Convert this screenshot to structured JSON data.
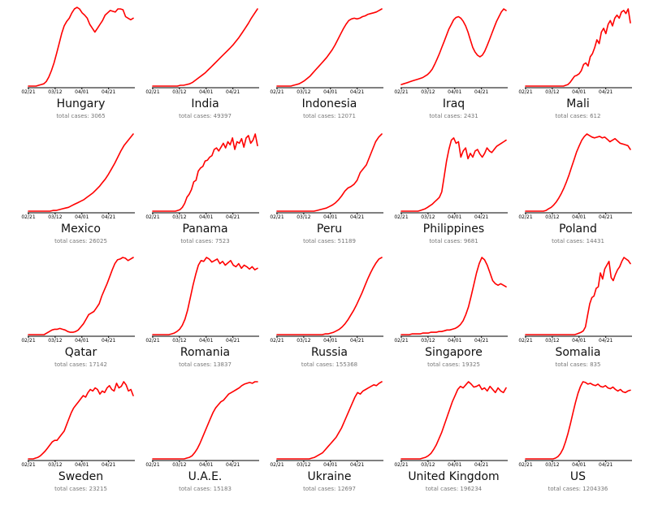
{
  "chart_data": [
    {
      "type": "line",
      "title": "Hungary",
      "subtitle": "total cases: 3065",
      "x_ticks": [
        "02/21",
        "03/12",
        "04/01",
        "04/21"
      ],
      "values": [
        0,
        0,
        0,
        0,
        1,
        2,
        3,
        6,
        12,
        20,
        30,
        42,
        55,
        68,
        78,
        84,
        88,
        95,
        100,
        102,
        100,
        95,
        92,
        88,
        80,
        75,
        70,
        75,
        80,
        85,
        92,
        95,
        98,
        97,
        96,
        100,
        100,
        99,
        90,
        88,
        86,
        88
      ]
    },
    {
      "type": "line",
      "title": "India",
      "subtitle": "total cases: 49397",
      "x_ticks": [
        "02/21",
        "03/12",
        "04/01",
        "04/21"
      ],
      "values": [
        0,
        0,
        0,
        0,
        0,
        0,
        0,
        0,
        0,
        1,
        1,
        2,
        3,
        5,
        8,
        11,
        14,
        17,
        21,
        25,
        29,
        33,
        37,
        41,
        45,
        49,
        53,
        58,
        63,
        69,
        75,
        81,
        88,
        94,
        100
      ]
    },
    {
      "type": "line",
      "title": "Indonesia",
      "subtitle": "total cases: 12071",
      "x_ticks": [
        "02/21",
        "03/12",
        "04/01",
        "04/21"
      ],
      "values": [
        0,
        0,
        0,
        0,
        0,
        0,
        1,
        2,
        3,
        5,
        7,
        10,
        13,
        17,
        21,
        25,
        29,
        33,
        37,
        42,
        47,
        53,
        60,
        67,
        74,
        80,
        85,
        87,
        88,
        87,
        88,
        90,
        91,
        93,
        94,
        95,
        96,
        98,
        100
      ]
    },
    {
      "type": "line",
      "title": "Iraq",
      "subtitle": "total cases: 2431",
      "x_ticks": [
        "02/21",
        "03/12",
        "04/01",
        "04/21"
      ],
      "values": [
        2,
        3,
        4,
        5,
        6,
        7,
        8,
        9,
        10,
        11,
        13,
        15,
        18,
        22,
        28,
        35,
        42,
        50,
        58,
        66,
        74,
        80,
        86,
        89,
        90,
        88,
        84,
        78,
        70,
        60,
        50,
        44,
        40,
        38,
        40,
        45,
        52,
        60,
        68,
        76,
        84,
        90,
        96,
        100,
        98
      ]
    },
    {
      "type": "line",
      "title": "Mali",
      "subtitle": "total cases: 612",
      "x_ticks": [
        "02/21",
        "03/12",
        "04/01",
        "04/21"
      ],
      "values": [
        0,
        0,
        0,
        0,
        0,
        0,
        0,
        0,
        0,
        0,
        0,
        0,
        0,
        0,
        0,
        0,
        0,
        0,
        1,
        2,
        5,
        9,
        13,
        14,
        16,
        20,
        28,
        30,
        26,
        38,
        42,
        50,
        60,
        55,
        70,
        75,
        68,
        80,
        85,
        78,
        88,
        92,
        88,
        96,
        98,
        94,
        100,
        82
      ]
    },
    {
      "type": "line",
      "title": "Mexico",
      "subtitle": "total cases: 26025",
      "x_ticks": [
        "02/21",
        "03/12",
        "04/01",
        "04/21"
      ],
      "values": [
        0,
        0,
        0,
        0,
        0,
        0,
        0,
        0,
        1,
        1,
        2,
        3,
        4,
        5,
        7,
        9,
        11,
        13,
        15,
        18,
        21,
        24,
        28,
        32,
        37,
        42,
        48,
        55,
        62,
        70,
        78,
        85,
        90,
        95,
        100
      ]
    },
    {
      "type": "line",
      "title": "Panama",
      "subtitle": "total cases: 7523",
      "x_ticks": [
        "02/21",
        "03/12",
        "04/01",
        "04/21"
      ],
      "values": [
        0,
        0,
        0,
        0,
        0,
        0,
        0,
        0,
        0,
        0,
        0,
        1,
        2,
        5,
        10,
        18,
        22,
        28,
        38,
        40,
        52,
        56,
        58,
        65,
        66,
        70,
        72,
        80,
        82,
        78,
        83,
        88,
        82,
        90,
        86,
        95,
        80,
        90,
        88,
        94,
        83,
        95,
        98,
        88,
        92,
        100,
        85
      ]
    },
    {
      "type": "line",
      "title": "Peru",
      "subtitle": "total cases: 51189",
      "x_ticks": [
        "02/21",
        "03/12",
        "04/01",
        "04/21"
      ],
      "values": [
        0,
        0,
        0,
        0,
        0,
        0,
        0,
        0,
        0,
        0,
        0,
        0,
        0,
        1,
        2,
        3,
        4,
        6,
        8,
        11,
        15,
        20,
        26,
        30,
        32,
        35,
        40,
        50,
        55,
        60,
        70,
        80,
        90,
        96,
        100
      ]
    },
    {
      "type": "line",
      "title": "Philippines",
      "subtitle": "total cases: 9681",
      "x_ticks": [
        "02/21",
        "03/12",
        "04/01",
        "04/21"
      ],
      "values": [
        0,
        0,
        0,
        0,
        0,
        0,
        0,
        0,
        1,
        2,
        3,
        5,
        7,
        9,
        12,
        15,
        18,
        25,
        45,
        65,
        80,
        92,
        95,
        88,
        90,
        70,
        78,
        82,
        68,
        75,
        70,
        78,
        80,
        74,
        70,
        75,
        82,
        78,
        76,
        80,
        84,
        86,
        88,
        90,
        92
      ]
    },
    {
      "type": "line",
      "title": "Poland",
      "subtitle": "total cases: 14431",
      "x_ticks": [
        "02/21",
        "03/12",
        "04/01",
        "04/21"
      ],
      "values": [
        0,
        0,
        0,
        0,
        0,
        0,
        0,
        0,
        1,
        3,
        5,
        8,
        12,
        17,
        23,
        30,
        38,
        47,
        57,
        67,
        77,
        85,
        92,
        97,
        100,
        98,
        96,
        95,
        96,
        97,
        95,
        96,
        93,
        90,
        92,
        94,
        91,
        88,
        87,
        86,
        85,
        80
      ]
    },
    {
      "type": "line",
      "title": "Qatar",
      "subtitle": "total cases: 17142",
      "x_ticks": [
        "02/21",
        "03/12",
        "04/01",
        "04/21"
      ],
      "values": [
        0,
        0,
        0,
        0,
        0,
        0,
        0,
        2,
        4,
        6,
        7,
        7,
        8,
        7,
        6,
        4,
        3,
        3,
        4,
        6,
        10,
        14,
        20,
        26,
        28,
        30,
        35,
        40,
        50,
        58,
        66,
        75,
        84,
        92,
        97,
        98,
        100,
        99,
        96,
        98,
        100
      ]
    },
    {
      "type": "line",
      "title": "Romania",
      "subtitle": "total cases: 13837",
      "x_ticks": [
        "02/21",
        "03/12",
        "04/01",
        "04/21"
      ],
      "values": [
        0,
        0,
        0,
        0,
        0,
        0,
        0,
        1,
        2,
        4,
        7,
        12,
        20,
        32,
        48,
        64,
        78,
        90,
        96,
        95,
        100,
        98,
        94,
        96,
        98,
        92,
        95,
        90,
        93,
        96,
        90,
        88,
        92,
        86,
        90,
        88,
        85,
        88,
        84,
        86
      ]
    },
    {
      "type": "line",
      "title": "Russia",
      "subtitle": "total cases: 155368",
      "x_ticks": [
        "02/21",
        "03/12",
        "04/01",
        "04/21"
      ],
      "values": [
        0,
        0,
        0,
        0,
        0,
        0,
        0,
        0,
        0,
        0,
        0,
        0,
        0,
        0,
        0,
        0,
        0,
        1,
        1,
        2,
        3,
        5,
        7,
        10,
        14,
        19,
        25,
        31,
        38,
        46,
        54,
        63,
        72,
        80,
        87,
        93,
        98,
        100
      ]
    },
    {
      "type": "line",
      "title": "Singapore",
      "subtitle": "total cases: 19325",
      "x_ticks": [
        "02/21",
        "03/12",
        "04/01",
        "04/21"
      ],
      "values": [
        0,
        0,
        0,
        0,
        1,
        1,
        1,
        1,
        2,
        2,
        2,
        3,
        3,
        3,
        4,
        4,
        5,
        6,
        6,
        7,
        8,
        10,
        13,
        18,
        26,
        36,
        50,
        65,
        80,
        92,
        100,
        97,
        90,
        80,
        70,
        66,
        64,
        66,
        64,
        62
      ]
    },
    {
      "type": "line",
      "title": "Somalia",
      "subtitle": "total cases: 835",
      "x_ticks": [
        "02/21",
        "03/12",
        "04/01",
        "04/21"
      ],
      "values": [
        0,
        0,
        0,
        0,
        0,
        0,
        0,
        0,
        0,
        0,
        0,
        0,
        0,
        0,
        0,
        0,
        0,
        0,
        0,
        0,
        0,
        0,
        0,
        0,
        1,
        2,
        3,
        5,
        10,
        25,
        40,
        48,
        50,
        60,
        62,
        80,
        72,
        85,
        90,
        95,
        74,
        70,
        78,
        84,
        88,
        95,
        100,
        98,
        96,
        92
      ]
    },
    {
      "type": "line",
      "title": "Sweden",
      "subtitle": "total cases: 23215",
      "x_ticks": [
        "02/21",
        "03/12",
        "04/01",
        "04/21"
      ],
      "values": [
        0,
        0,
        0,
        1,
        2,
        4,
        7,
        10,
        14,
        18,
        22,
        24,
        24,
        28,
        32,
        36,
        44,
        52,
        60,
        66,
        70,
        74,
        78,
        82,
        80,
        86,
        90,
        88,
        92,
        90,
        84,
        88,
        86,
        92,
        95,
        90,
        88,
        98,
        92,
        94,
        100,
        96,
        88,
        90,
        82
      ]
    },
    {
      "type": "line",
      "title": "U.A.E.",
      "subtitle": "total cases: 15183",
      "x_ticks": [
        "02/21",
        "03/12",
        "04/01",
        "04/21"
      ],
      "values": [
        0,
        0,
        0,
        0,
        0,
        0,
        0,
        0,
        0,
        0,
        0,
        0,
        0,
        1,
        2,
        4,
        8,
        13,
        20,
        28,
        36,
        44,
        52,
        60,
        66,
        70,
        74,
        76,
        80,
        84,
        86,
        88,
        90,
        92,
        95,
        97,
        98,
        99,
        98,
        100,
        100
      ]
    },
    {
      "type": "line",
      "title": "Ukraine",
      "subtitle": "total cases: 12697",
      "x_ticks": [
        "02/21",
        "03/12",
        "04/01",
        "04/21"
      ],
      "values": [
        0,
        0,
        0,
        0,
        0,
        0,
        0,
        0,
        0,
        0,
        0,
        0,
        0,
        1,
        2,
        4,
        6,
        8,
        12,
        16,
        20,
        24,
        28,
        34,
        40,
        48,
        56,
        64,
        72,
        80,
        86,
        84,
        88,
        90,
        92,
        94,
        96,
        95,
        98,
        100
      ]
    },
    {
      "type": "line",
      "title": "United Kingdom",
      "subtitle": "total cases: 196234",
      "x_ticks": [
        "02/21",
        "03/12",
        "04/01",
        "04/21"
      ],
      "values": [
        0,
        0,
        0,
        0,
        0,
        0,
        0,
        0,
        1,
        2,
        4,
        7,
        12,
        18,
        26,
        34,
        44,
        54,
        64,
        74,
        82,
        90,
        94,
        92,
        96,
        100,
        97,
        93,
        94,
        96,
        90,
        92,
        88,
        94,
        90,
        86,
        92,
        88,
        86,
        92
      ]
    },
    {
      "type": "line",
      "title": "US",
      "subtitle": "total cases: 1204336",
      "x_ticks": [
        "02/21",
        "03/12",
        "04/01",
        "04/21"
      ],
      "values": [
        0,
        0,
        0,
        0,
        0,
        0,
        0,
        0,
        0,
        0,
        0,
        0,
        1,
        3,
        7,
        13,
        22,
        33,
        46,
        60,
        73,
        85,
        94,
        100,
        99,
        97,
        98,
        96,
        95,
        97,
        94,
        93,
        95,
        92,
        91,
        93,
        90,
        88,
        90,
        87,
        86,
        88,
        89
      ]
    }
  ]
}
